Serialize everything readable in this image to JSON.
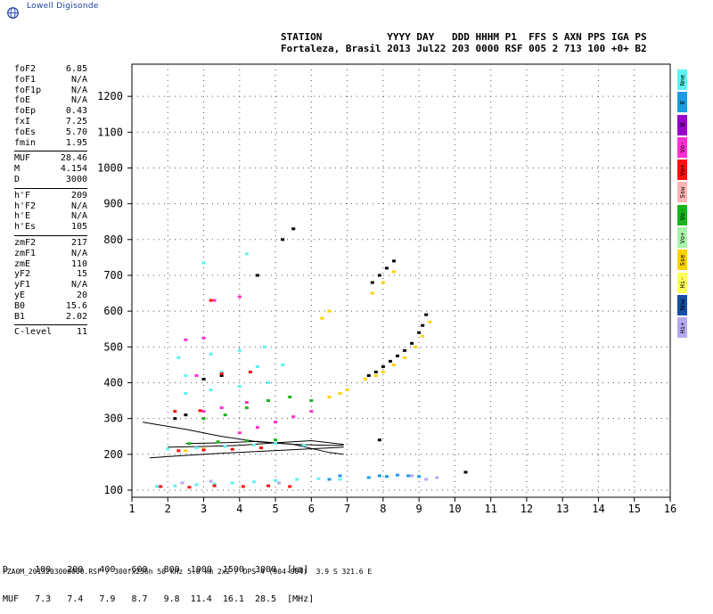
{
  "logo": {
    "text": "Lowell Digisonde",
    "icon": "globe-icon"
  },
  "header": {
    "line1": "STATION           YYYY DAY   DDD HHHM P1  FFS S AXN PPS IGA PS",
    "line2": "Fortaleza, Brasil 2013 Jul22 203 0000 RSF 005 2 713 100 +0+ B2"
  },
  "params": {
    "group1": [
      {
        "k": "foF2",
        "v": "6.85"
      },
      {
        "k": "foF1",
        "v": "N/A"
      },
      {
        "k": "foF1p",
        "v": "N/A"
      },
      {
        "k": "foE",
        "v": "N/A"
      },
      {
        "k": "foEp",
        "v": "0.43"
      },
      {
        "k": "fxI",
        "v": "7.25"
      },
      {
        "k": "foEs",
        "v": "5.70"
      },
      {
        "k": "fmin",
        "v": "1.95"
      }
    ],
    "group2": [
      {
        "k": "MUF",
        "v": "28.46"
      },
      {
        "k": "M",
        "v": "4.154"
      },
      {
        "k": "D",
        "v": "3000"
      }
    ],
    "group3": [
      {
        "k": "h'F",
        "v": "209"
      },
      {
        "k": "h'F2",
        "v": "N/A"
      },
      {
        "k": "h'E",
        "v": "N/A"
      },
      {
        "k": "h'Es",
        "v": "105"
      }
    ],
    "group4": [
      {
        "k": "zmF2",
        "v": "217"
      },
      {
        "k": "zmF1",
        "v": "N/A"
      },
      {
        "k": "zmE",
        "v": "110"
      },
      {
        "k": "yF2",
        "v": "15"
      },
      {
        "k": "yF1",
        "v": "N/A"
      },
      {
        "k": "yE",
        "v": "20"
      },
      {
        "k": "B0",
        "v": "15.6"
      },
      {
        "k": "B1",
        "v": "2.02"
      }
    ],
    "group5": [
      {
        "k": "C-level",
        "v": "11"
      }
    ]
  },
  "legend": [
    {
      "label": "Nne",
      "color": "#5ff2f2"
    },
    {
      "label": "E",
      "color": "#1e9be6"
    },
    {
      "label": "W",
      "color": "#9a00c8"
    },
    {
      "label": "Vo-",
      "color": "#ff2ed2"
    },
    {
      "label": "Vo+",
      "color": "#ff1010"
    },
    {
      "label": "Ssw",
      "color": "#ffb4b4"
    },
    {
      "label": "Vo-",
      "color": "#19b419"
    },
    {
      "label": "Vo+",
      "color": "#a8f5a8"
    },
    {
      "label": "Sse",
      "color": "#ffd200"
    },
    {
      "label": "Hi-",
      "color": "#ffff5a"
    },
    {
      "label": "Nnw",
      "color": "#1450aa"
    },
    {
      "label": "Hi+",
      "color": "#b4aaf0"
    }
  ],
  "bottom": {
    "d_row": "D     100   200   400   600   800  1000  1500  3000  [km]",
    "muf_row": "MUF   7.3   7.4   7.9   8.7   9.8  11.4  16.1  28.5  [MHz]",
    "footer": "FZA0M_2013203000000.RSF / 300fx256h 50 kHz 5.0 km 2x2 / DPS-4 (904-904)  3.9 S 321.6 E"
  },
  "chart_data": {
    "type": "scatter",
    "xlabel": "",
    "ylabel": "",
    "xlim": [
      1,
      16
    ],
    "ylim": [
      80,
      1290
    ],
    "x_ticks": [
      1,
      2,
      3,
      4,
      5,
      6,
      7,
      8,
      9,
      10,
      11,
      12,
      13,
      14,
      15,
      16
    ],
    "y_ticks": [
      100,
      200,
      300,
      400,
      500,
      600,
      700,
      800,
      900,
      1000,
      1100,
      1200
    ],
    "grid": true,
    "series": [
      {
        "color": "#000000",
        "points": [
          [
            7.6,
            420
          ],
          [
            7.8,
            430
          ],
          [
            8.0,
            445
          ],
          [
            8.2,
            460
          ],
          [
            8.4,
            475
          ],
          [
            8.6,
            490
          ],
          [
            8.8,
            510
          ],
          [
            9.0,
            540
          ],
          [
            9.1,
            560
          ],
          [
            9.2,
            590
          ],
          [
            7.7,
            680
          ],
          [
            7.9,
            700
          ],
          [
            8.1,
            720
          ],
          [
            8.3,
            740
          ],
          [
            5.2,
            800
          ],
          [
            5.5,
            830
          ],
          [
            4.5,
            700
          ],
          [
            3.0,
            410
          ],
          [
            3.5,
            420
          ],
          [
            2.2,
            300
          ],
          [
            2.5,
            310
          ],
          [
            7.9,
            240
          ],
          [
            10.3,
            150
          ]
        ]
      },
      {
        "color": "#ffd200",
        "points": [
          [
            7.5,
            410
          ],
          [
            7.8,
            420
          ],
          [
            8.0,
            430
          ],
          [
            8.3,
            450
          ],
          [
            8.6,
            470
          ],
          [
            8.9,
            500
          ],
          [
            9.1,
            530
          ],
          [
            9.3,
            570
          ],
          [
            6.5,
            360
          ],
          [
            6.8,
            370
          ],
          [
            7.0,
            380
          ],
          [
            7.7,
            650
          ],
          [
            8.0,
            680
          ],
          [
            8.3,
            710
          ],
          [
            6.3,
            580
          ],
          [
            6.5,
            600
          ],
          [
            2.5,
            210
          ],
          [
            3.0,
            215
          ]
        ]
      },
      {
        "color": "#ff2ed2",
        "points": [
          [
            4.0,
            260
          ],
          [
            4.5,
            275
          ],
          [
            5.0,
            290
          ],
          [
            5.5,
            305
          ],
          [
            6.0,
            320
          ],
          [
            3.0,
            320
          ],
          [
            3.5,
            330
          ],
          [
            4.2,
            345
          ],
          [
            2.5,
            520
          ],
          [
            3.0,
            525
          ],
          [
            2.8,
            420
          ],
          [
            3.3,
            630
          ],
          [
            4.0,
            640
          ]
        ]
      },
      {
        "color": "#5ff2f2",
        "points": [
          [
            1.7,
            110
          ],
          [
            2.2,
            112
          ],
          [
            2.8,
            115
          ],
          [
            3.3,
            118
          ],
          [
            3.8,
            120
          ],
          [
            4.4,
            123
          ],
          [
            5.0,
            127
          ],
          [
            5.6,
            130
          ],
          [
            6.2,
            132
          ],
          [
            6.8,
            130
          ],
          [
            2.0,
            215
          ],
          [
            2.8,
            218
          ],
          [
            3.6,
            222
          ],
          [
            4.4,
            226
          ],
          [
            5.0,
            230
          ],
          [
            5.8,
            225
          ],
          [
            2.5,
            420
          ],
          [
            3.5,
            430
          ],
          [
            4.5,
            445
          ],
          [
            5.2,
            450
          ],
          [
            2.5,
            370
          ],
          [
            3.2,
            380
          ],
          [
            4.0,
            390
          ],
          [
            4.8,
            400
          ],
          [
            2.3,
            470
          ],
          [
            3.2,
            480
          ],
          [
            4.0,
            490
          ],
          [
            4.7,
            500
          ],
          [
            3.0,
            735
          ],
          [
            4.2,
            760
          ]
        ]
      },
      {
        "color": "#1e9be6",
        "points": [
          [
            7.6,
            135
          ],
          [
            7.9,
            140
          ],
          [
            8.1,
            138
          ],
          [
            8.4,
            142
          ],
          [
            8.7,
            140
          ],
          [
            9.0,
            138
          ],
          [
            6.5,
            130
          ],
          [
            6.8,
            140
          ]
        ]
      },
      {
        "color": "#ff1010",
        "points": [
          [
            1.8,
            110
          ],
          [
            2.6,
            108
          ],
          [
            3.3,
            112
          ],
          [
            4.1,
            110
          ],
          [
            4.8,
            112
          ],
          [
            5.4,
            110
          ],
          [
            2.3,
            210
          ],
          [
            3.0,
            212
          ],
          [
            3.8,
            214
          ],
          [
            4.6,
            218
          ],
          [
            2.2,
            320
          ],
          [
            2.9,
            322
          ],
          [
            3.5,
            425
          ],
          [
            4.3,
            430
          ],
          [
            3.2,
            630
          ]
        ]
      },
      {
        "color": "#19b419",
        "points": [
          [
            3.0,
            300
          ],
          [
            3.6,
            310
          ],
          [
            4.2,
            330
          ],
          [
            4.8,
            350
          ],
          [
            5.4,
            360
          ],
          [
            6.0,
            350
          ],
          [
            2.6,
            230
          ],
          [
            3.4,
            235
          ],
          [
            4.2,
            238
          ],
          [
            5.0,
            240
          ]
        ]
      },
      {
        "color": "#b4aaf0",
        "points": [
          [
            8.8,
            140
          ],
          [
            9.2,
            130
          ],
          [
            9.5,
            135
          ],
          [
            2.4,
            120
          ],
          [
            3.2,
            125
          ],
          [
            5.1,
            120
          ]
        ]
      }
    ],
    "annotations": [
      {
        "type": "curve",
        "points": [
          [
            1.3,
            290
          ],
          [
            2.5,
            270
          ],
          [
            3.5,
            250
          ],
          [
            4.5,
            235
          ],
          [
            5.5,
            228
          ],
          [
            6.5,
            225
          ],
          [
            6.9,
            225
          ]
        ]
      },
      {
        "type": "curve",
        "points": [
          [
            1.5,
            190
          ],
          [
            2.5,
            197
          ],
          [
            3.5,
            203
          ],
          [
            4.5,
            208
          ],
          [
            5.5,
            213
          ],
          [
            6.5,
            218
          ],
          [
            6.9,
            220
          ]
        ]
      },
      {
        "type": "curve",
        "points": [
          [
            2.0,
            220
          ],
          [
            3.0,
            222
          ],
          [
            4.0,
            225
          ],
          [
            5.0,
            232
          ],
          [
            6.0,
            238
          ],
          [
            6.9,
            228
          ]
        ]
      },
      {
        "type": "curve",
        "points": [
          [
            2.5,
            230
          ],
          [
            3.5,
            232
          ],
          [
            4.5,
            236
          ],
          [
            5.5,
            228
          ],
          [
            6.5,
            205
          ],
          [
            6.9,
            200
          ]
        ]
      }
    ]
  }
}
